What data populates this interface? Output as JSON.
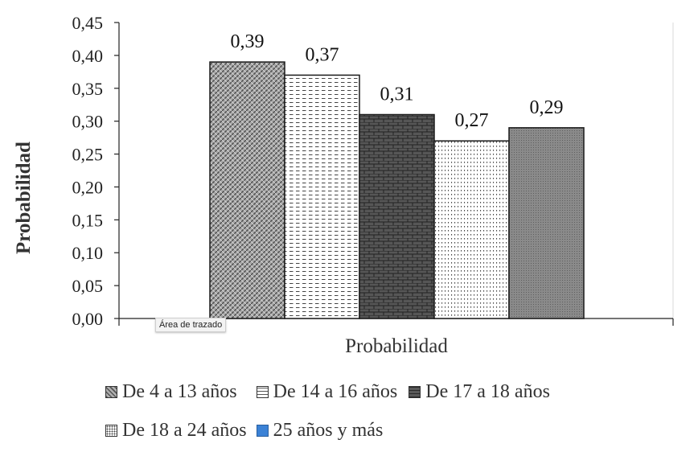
{
  "chart_data": {
    "type": "bar",
    "categories": [
      "Probabilidad"
    ],
    "xlabel": "Probabilidad",
    "ylabel": "Probabilidad",
    "ylim": [
      0,
      0.45
    ],
    "yticks": [
      "0,00",
      "0,05",
      "0,10",
      "0,15",
      "0,20",
      "0,25",
      "0,30",
      "0,35",
      "0,40",
      "0,45"
    ],
    "series": [
      {
        "name": "De 4 a 13 años",
        "value": 0.39,
        "label": "0,39",
        "color": "#9a9a9a",
        "pattern": "crosshatch"
      },
      {
        "name": "De 14 a 16 años",
        "value": 0.37,
        "label": "0,37",
        "color": "#ffffff",
        "pattern": "dashes"
      },
      {
        "name": "De 17 a 18 años",
        "value": 0.31,
        "label": "0,31",
        "color": "#4a4a4a",
        "pattern": "bricks"
      },
      {
        "name": "De 18 a 24 años",
        "value": 0.27,
        "label": "0,27",
        "color": "#ffffff",
        "pattern": "dots"
      },
      {
        "name": "25 años y más",
        "value": 0.29,
        "label": "0,29",
        "color": "#7f7f7f",
        "pattern": "fine-dots",
        "legend_color": "#3b82d6"
      }
    ],
    "grid": false,
    "legend_position": "bottom"
  },
  "tooltip": "Área de trazado"
}
